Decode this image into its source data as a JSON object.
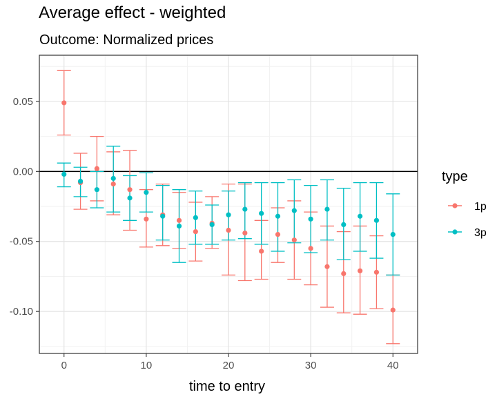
{
  "chart_data": {
    "type": "scatter",
    "title": "Average effect - weighted",
    "subtitle": "Outcome: Normalized prices",
    "xlabel": "time to entry",
    "ylabel": "",
    "xlim": [
      -3,
      43
    ],
    "ylim": [
      -0.13,
      0.083
    ],
    "x_ticks": [
      0,
      10,
      20,
      30,
      40
    ],
    "x_tick_labels": [
      "0",
      "10",
      "20",
      "30",
      "40"
    ],
    "y_ticks": [
      0.05,
      0.0,
      -0.05,
      -0.1
    ],
    "y_tick_labels": [
      "0.05",
      "0.00",
      "-0.05",
      "-0.10"
    ],
    "reference_line_y": 0,
    "grid": true,
    "legend": {
      "title": "type",
      "position": "right"
    },
    "series": [
      {
        "name": "1p",
        "color": "#F8766D",
        "points": [
          {
            "x": 0,
            "y": 0.049,
            "lo": 0.026,
            "hi": 0.072
          },
          {
            "x": 2,
            "y": -0.008,
            "lo": -0.027,
            "hi": 0.013
          },
          {
            "x": 4,
            "y": 0.002,
            "lo": -0.021,
            "hi": 0.025
          },
          {
            "x": 6,
            "y": -0.009,
            "lo": -0.031,
            "hi": 0.014
          },
          {
            "x": 8,
            "y": -0.013,
            "lo": -0.042,
            "hi": 0.015
          },
          {
            "x": 10,
            "y": -0.034,
            "lo": -0.054,
            "hi": -0.013
          },
          {
            "x": 12,
            "y": -0.031,
            "lo": -0.053,
            "hi": -0.009
          },
          {
            "x": 14,
            "y": -0.035,
            "lo": -0.055,
            "hi": -0.015
          },
          {
            "x": 16,
            "y": -0.043,
            "lo": -0.064,
            "hi": -0.022
          },
          {
            "x": 18,
            "y": -0.037,
            "lo": -0.055,
            "hi": -0.018
          },
          {
            "x": 20,
            "y": -0.042,
            "lo": -0.074,
            "hi": -0.009
          },
          {
            "x": 22,
            "y": -0.044,
            "lo": -0.078,
            "hi": -0.009
          },
          {
            "x": 24,
            "y": -0.057,
            "lo": -0.077,
            "hi": -0.035
          },
          {
            "x": 26,
            "y": -0.045,
            "lo": -0.065,
            "hi": -0.026
          },
          {
            "x": 28,
            "y": -0.049,
            "lo": -0.077,
            "hi": -0.021
          },
          {
            "x": 30,
            "y": -0.055,
            "lo": -0.081,
            "hi": -0.029
          },
          {
            "x": 32,
            "y": -0.068,
            "lo": -0.097,
            "hi": -0.039
          },
          {
            "x": 34,
            "y": -0.073,
            "lo": -0.101,
            "hi": -0.043
          },
          {
            "x": 36,
            "y": -0.071,
            "lo": -0.102,
            "hi": -0.039
          },
          {
            "x": 38,
            "y": -0.072,
            "lo": -0.098,
            "hi": -0.046
          },
          {
            "x": 40,
            "y": -0.099,
            "lo": -0.123,
            "hi": -0.074
          }
        ]
      },
      {
        "name": "3p",
        "color": "#00BFC4",
        "points": [
          {
            "x": 0,
            "y": -0.002,
            "lo": -0.011,
            "hi": 0.006
          },
          {
            "x": 2,
            "y": -0.007,
            "lo": -0.018,
            "hi": 0.003
          },
          {
            "x": 4,
            "y": -0.013,
            "lo": -0.026,
            "hi": 0.0
          },
          {
            "x": 6,
            "y": -0.005,
            "lo": -0.029,
            "hi": 0.018
          },
          {
            "x": 8,
            "y": -0.019,
            "lo": -0.035,
            "hi": -0.003
          },
          {
            "x": 10,
            "y": -0.015,
            "lo": -0.029,
            "hi": -0.001
          },
          {
            "x": 12,
            "y": -0.032,
            "lo": -0.049,
            "hi": -0.01
          },
          {
            "x": 14,
            "y": -0.039,
            "lo": -0.065,
            "hi": -0.013
          },
          {
            "x": 16,
            "y": -0.033,
            "lo": -0.052,
            "hi": -0.014
          },
          {
            "x": 18,
            "y": -0.038,
            "lo": -0.052,
            "hi": -0.024
          },
          {
            "x": 20,
            "y": -0.031,
            "lo": -0.049,
            "hi": -0.014
          },
          {
            "x": 22,
            "y": -0.027,
            "lo": -0.048,
            "hi": -0.008
          },
          {
            "x": 24,
            "y": -0.03,
            "lo": -0.052,
            "hi": -0.008
          },
          {
            "x": 26,
            "y": -0.032,
            "lo": -0.057,
            "hi": -0.008
          },
          {
            "x": 28,
            "y": -0.028,
            "lo": -0.051,
            "hi": -0.006
          },
          {
            "x": 30,
            "y": -0.034,
            "lo": -0.058,
            "hi": -0.01
          },
          {
            "x": 32,
            "y": -0.027,
            "lo": -0.049,
            "hi": -0.006
          },
          {
            "x": 34,
            "y": -0.038,
            "lo": -0.063,
            "hi": -0.012
          },
          {
            "x": 36,
            "y": -0.032,
            "lo": -0.057,
            "hi": -0.008
          },
          {
            "x": 38,
            "y": -0.035,
            "lo": -0.062,
            "hi": -0.008
          },
          {
            "x": 40,
            "y": -0.045,
            "lo": -0.074,
            "hi": -0.016
          }
        ]
      }
    ]
  }
}
